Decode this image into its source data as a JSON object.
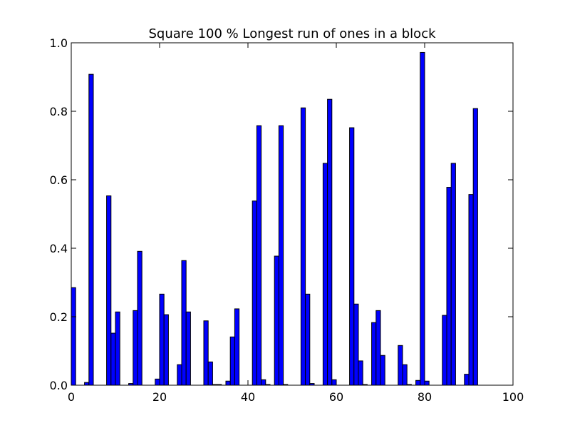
{
  "chart_data": {
    "type": "bar",
    "title": "Square 100 % Longest run of ones in a block",
    "xlabel": "",
    "ylabel": "",
    "xlim": [
      0,
      100
    ],
    "ylim": [
      0,
      1.0
    ],
    "x_ticks": [
      "0",
      "20",
      "40",
      "60",
      "80",
      "100"
    ],
    "y_ticks": [
      "0.0",
      "0.2",
      "0.4",
      "0.6",
      "0.8",
      "1.0"
    ],
    "grid": false,
    "bar_width": 1,
    "bar_color": "#0000ff",
    "bar_edge_color": "#000000",
    "x": [
      0,
      1,
      2,
      3,
      4,
      5,
      6,
      7,
      8,
      9,
      10,
      11,
      12,
      13,
      14,
      15,
      16,
      17,
      18,
      19,
      20,
      21,
      22,
      23,
      24,
      25,
      26,
      27,
      28,
      29,
      30,
      31,
      32,
      33,
      34,
      35,
      36,
      37,
      38,
      39,
      40,
      41,
      42,
      43,
      44,
      45,
      46,
      47,
      48,
      49,
      50,
      51,
      52,
      53,
      54,
      55,
      56,
      57,
      58,
      59,
      60,
      61,
      62,
      63,
      64,
      65,
      66,
      67,
      68,
      69,
      70,
      71,
      72,
      73,
      74,
      75,
      76,
      77,
      78,
      79,
      80,
      81,
      82,
      83,
      84,
      85,
      86,
      87,
      88,
      89,
      90,
      91,
      92,
      93,
      94,
      95,
      96,
      97,
      98,
      99
    ],
    "values": [
      0.285,
      0,
      0,
      0.008,
      0.908,
      0,
      0,
      0,
      0.553,
      0.152,
      0.214,
      0,
      0,
      0.005,
      0.218,
      0.391,
      0,
      0,
      0,
      0.018,
      0.266,
      0.206,
      0,
      0,
      0.06,
      0.364,
      0.214,
      0,
      0,
      0,
      0.188,
      0.068,
      0.002,
      0.002,
      0,
      0.012,
      0.141,
      0.223,
      0,
      0,
      0,
      0.538,
      0.758,
      0.016,
      0.002,
      0,
      0.377,
      0.758,
      0.002,
      0,
      0,
      0,
      0.81,
      0.266,
      0.005,
      0,
      0,
      0.648,
      0.835,
      0.016,
      0,
      0,
      0,
      0.752,
      0.237,
      0.071,
      0.002,
      0,
      0.183,
      0.218,
      0.087,
      0,
      0,
      0,
      0.116,
      0.06,
      0.002,
      0,
      0.014,
      0.972,
      0.012,
      0,
      0,
      0,
      0.204,
      0.578,
      0.648,
      0,
      0,
      0.032,
      0.557,
      0.808,
      0,
      0,
      0,
      0,
      0,
      0,
      0,
      0
    ]
  }
}
